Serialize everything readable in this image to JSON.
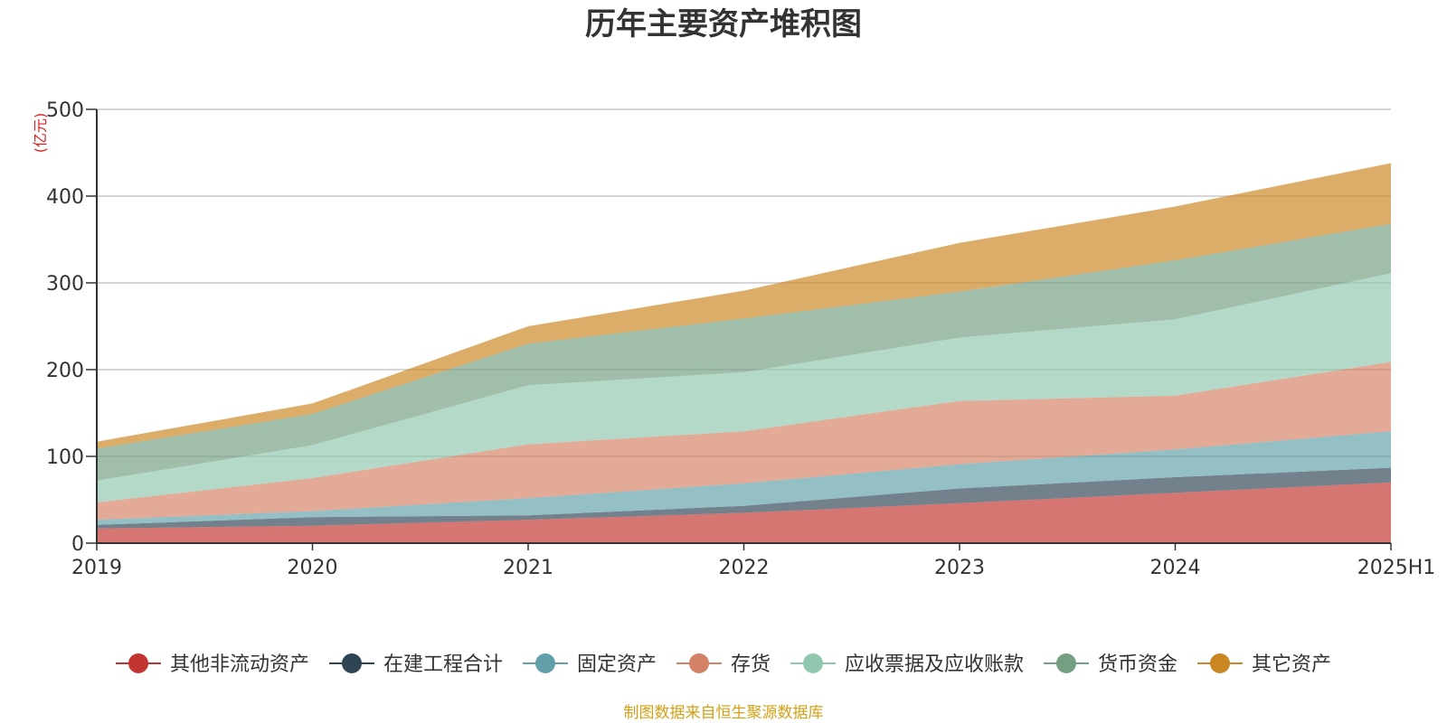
{
  "chart_data": {
    "type": "area",
    "stacked": true,
    "title": "历年主要资产堆积图",
    "unit_label": "(亿元)",
    "source": "制图数据来自恒生聚源数据库",
    "categories": [
      "2019",
      "2020",
      "2021",
      "2022",
      "2023",
      "2024",
      "2025H1"
    ],
    "ylim": [
      0,
      500
    ],
    "y_ticks": [
      0,
      100,
      200,
      300,
      400,
      500
    ],
    "grid": true,
    "legend_position": "bottom",
    "series": [
      {
        "name": "其他非流动资产",
        "color": "#c23531",
        "values": [
          17,
          20,
          27,
          35,
          46,
          58,
          70
        ]
      },
      {
        "name": "在建工程合计",
        "color": "#2f4554",
        "values": [
          4,
          10,
          5,
          8,
          17,
          18,
          17
        ]
      },
      {
        "name": "固定资产",
        "color": "#61a0a8",
        "values": [
          6,
          7,
          20,
          26,
          28,
          32,
          42
        ]
      },
      {
        "name": "存货",
        "color": "#d48265",
        "values": [
          20,
          38,
          62,
          60,
          73,
          62,
          80
        ]
      },
      {
        "name": "应收票据及应收账款",
        "color": "#91c7ae",
        "values": [
          25,
          38,
          68,
          68,
          73,
          88,
          102
        ]
      },
      {
        "name": "货币资金",
        "color": "#749f83",
        "values": [
          37,
          36,
          48,
          62,
          53,
          68,
          57
        ]
      },
      {
        "name": "其它资产",
        "color": "#ca8622",
        "values": [
          8,
          12,
          20,
          32,
          56,
          62,
          70
        ]
      }
    ]
  }
}
